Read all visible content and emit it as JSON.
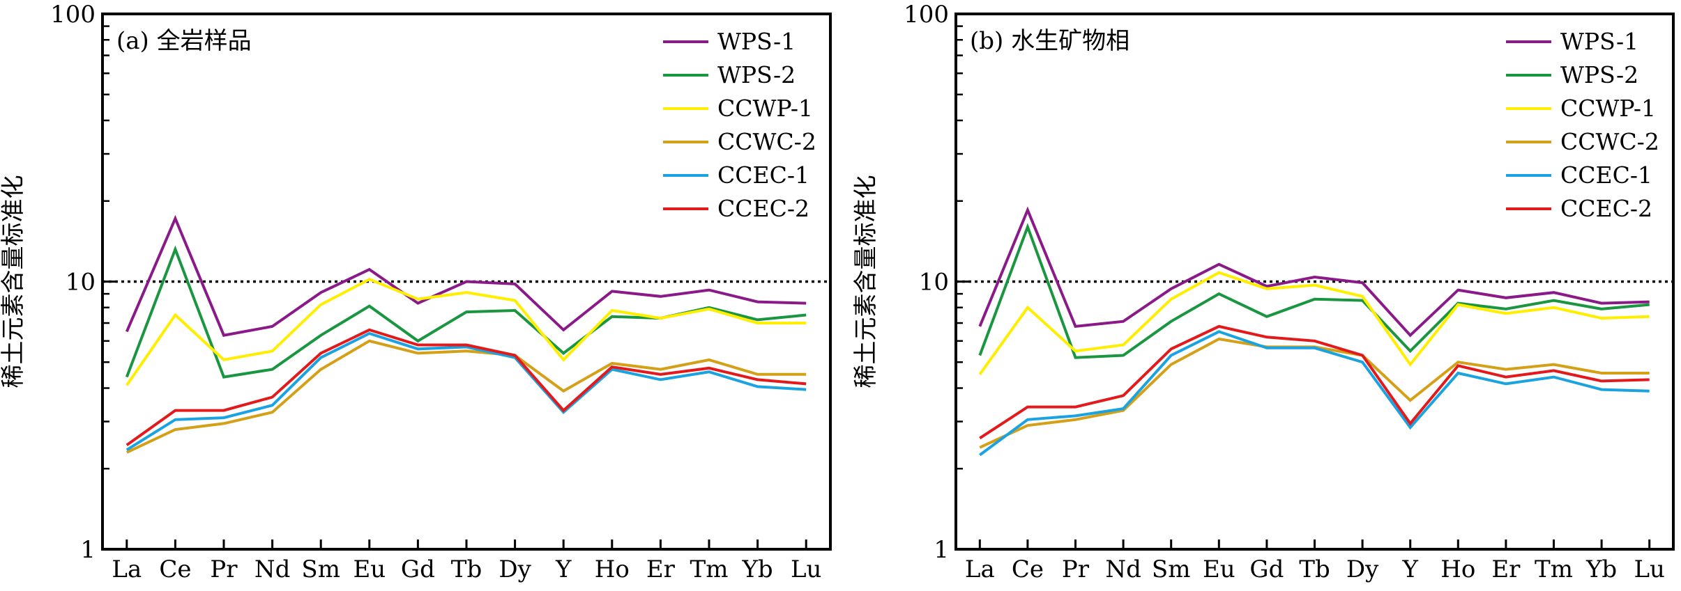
{
  "chart_data": [
    {
      "type": "line",
      "title": "(a) 全岩样品",
      "xlabel": "",
      "ylabel": "稀土元素含量标准化",
      "yscale": "log",
      "ylim": [
        1,
        100
      ],
      "y_ticks": [
        "1",
        "10",
        "100"
      ],
      "reference_line": {
        "y": 10,
        "style": "dotted"
      },
      "legend_position": "top-right",
      "categories": [
        "La",
        "Ce",
        "Pr",
        "Nd",
        "Sm",
        "Eu",
        "Gd",
        "Tb",
        "Dy",
        "Y",
        "Ho",
        "Er",
        "Tm",
        "Yb",
        "Lu"
      ],
      "series": [
        {
          "name": "WPS-1",
          "color": "#8b1a89",
          "values": [
            6.5,
            17.2,
            6.3,
            6.8,
            9.1,
            11.1,
            8.3,
            10.0,
            9.8,
            6.6,
            9.2,
            8.8,
            9.3,
            8.4,
            8.3
          ]
        },
        {
          "name": "WPS-2",
          "color": "#1a9641",
          "values": [
            4.4,
            13.2,
            4.4,
            4.7,
            6.3,
            8.1,
            6.0,
            7.7,
            7.8,
            5.4,
            7.4,
            7.3,
            8.0,
            7.2,
            7.5
          ]
        },
        {
          "name": "CCWP-1",
          "color": "#ffee00",
          "values": [
            4.1,
            7.5,
            5.1,
            5.5,
            8.2,
            10.2,
            8.6,
            9.1,
            8.5,
            5.1,
            7.8,
            7.3,
            7.9,
            7.0,
            7.0
          ]
        },
        {
          "name": "CCWC-2",
          "color": "#d4a017",
          "values": [
            2.3,
            2.8,
            2.95,
            3.25,
            4.7,
            6.0,
            5.4,
            5.5,
            5.3,
            3.9,
            4.95,
            4.7,
            5.1,
            4.5,
            4.5
          ]
        },
        {
          "name": "CCEC-1",
          "color": "#1aa3e0",
          "values": [
            2.35,
            3.05,
            3.1,
            3.45,
            5.2,
            6.4,
            5.6,
            5.7,
            5.2,
            3.25,
            4.7,
            4.3,
            4.6,
            4.05,
            3.95
          ]
        },
        {
          "name": "CCEC-2",
          "color": "#e31a1c",
          "values": [
            2.45,
            3.3,
            3.3,
            3.7,
            5.4,
            6.6,
            5.8,
            5.8,
            5.3,
            3.3,
            4.8,
            4.5,
            4.75,
            4.3,
            4.15
          ]
        }
      ]
    },
    {
      "type": "line",
      "title": "(b) 水生矿物相",
      "xlabel": "",
      "ylabel": "稀土元素含量标准化",
      "yscale": "log",
      "ylim": [
        1,
        100
      ],
      "y_ticks": [
        "1",
        "10",
        "100"
      ],
      "reference_line": {
        "y": 10,
        "style": "dotted"
      },
      "legend_position": "top-right",
      "categories": [
        "La",
        "Ce",
        "Pr",
        "Nd",
        "Sm",
        "Eu",
        "Gd",
        "Tb",
        "Dy",
        "Y",
        "Ho",
        "Er",
        "Tm",
        "Yb",
        "Lu"
      ],
      "series": [
        {
          "name": "WPS-1",
          "color": "#8b1a89",
          "values": [
            6.8,
            18.5,
            6.8,
            7.1,
            9.4,
            11.6,
            9.6,
            10.4,
            9.9,
            6.3,
            9.3,
            8.7,
            9.1,
            8.3,
            8.4
          ]
        },
        {
          "name": "WPS-2",
          "color": "#1a9641",
          "values": [
            5.3,
            16.0,
            5.2,
            5.3,
            7.1,
            9.0,
            7.4,
            8.6,
            8.5,
            5.5,
            8.3,
            7.9,
            8.5,
            7.9,
            8.2
          ]
        },
        {
          "name": "CCWP-1",
          "color": "#ffee00",
          "values": [
            4.5,
            8.0,
            5.5,
            5.8,
            8.6,
            10.8,
            9.4,
            9.7,
            8.8,
            4.9,
            8.2,
            7.6,
            8.0,
            7.3,
            7.4
          ]
        },
        {
          "name": "CCWC-2",
          "color": "#d4a017",
          "values": [
            2.4,
            2.9,
            3.05,
            3.3,
            4.9,
            6.1,
            5.7,
            5.7,
            5.3,
            3.6,
            5.0,
            4.7,
            4.9,
            4.55,
            4.55
          ]
        },
        {
          "name": "CCEC-1",
          "color": "#1aa3e0",
          "values": [
            2.25,
            3.05,
            3.15,
            3.35,
            5.3,
            6.5,
            5.65,
            5.65,
            5.0,
            2.85,
            4.55,
            4.15,
            4.4,
            3.95,
            3.9
          ]
        },
        {
          "name": "CCEC-2",
          "color": "#e31a1c",
          "values": [
            2.6,
            3.4,
            3.4,
            3.75,
            5.6,
            6.8,
            6.2,
            6.0,
            5.3,
            2.95,
            4.85,
            4.4,
            4.65,
            4.25,
            4.3
          ]
        }
      ]
    }
  ]
}
